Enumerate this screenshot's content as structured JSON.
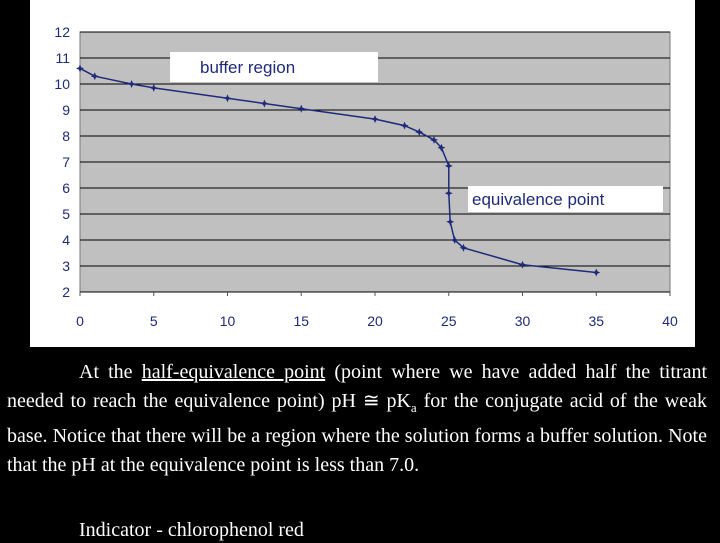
{
  "chart_data": {
    "type": "line",
    "title": "",
    "xlabel": "",
    "ylabel": "",
    "xlim": [
      0,
      40
    ],
    "ylim": [
      2,
      12
    ],
    "xticks": [
      "0",
      "5",
      "10",
      "15",
      "20",
      "25",
      "30",
      "35",
      "40"
    ],
    "yticks": [
      "2",
      "3",
      "4",
      "5",
      "6",
      "7",
      "8",
      "9",
      "10",
      "11",
      "12"
    ],
    "grid": "horizontal",
    "background": "#c0c0c0",
    "line_color": "#1f2a7a",
    "series": [
      {
        "points": [
          [
            0,
            10.6
          ],
          [
            1,
            10.3
          ],
          [
            3.5,
            10.0
          ],
          [
            5,
            9.85
          ],
          [
            10,
            9.45
          ],
          [
            12.5,
            9.25
          ],
          [
            15,
            9.05
          ],
          [
            20,
            8.65
          ],
          [
            22,
            8.4
          ],
          [
            23,
            8.15
          ],
          [
            24,
            7.85
          ],
          [
            24.5,
            7.55
          ],
          [
            25,
            6.85
          ],
          [
            25,
            5.8
          ],
          [
            25.1,
            4.7
          ],
          [
            25.4,
            4.0
          ],
          [
            26,
            3.7
          ],
          [
            30,
            3.05
          ],
          [
            35,
            2.75
          ]
        ]
      }
    ],
    "annotations": [
      {
        "text": "buffer region"
      },
      {
        "text": "equivalence point"
      }
    ]
  },
  "caption": {
    "part1": "At the ",
    "underlined": "half-equivalence point",
    "part2": " (point where we have added half the titrant needed to reach the equivalence point) pH ",
    "approx_symbol": "≅",
    "part3": " pK",
    "subscript": "a",
    "part4": " for the conjugate acid of the weak base.  Notice that there will be a region where the solution forms a buffer solution.  Note that the pH at the equivalence point is less than 7.0."
  },
  "indicator": "Indicator - chlorophenol red"
}
